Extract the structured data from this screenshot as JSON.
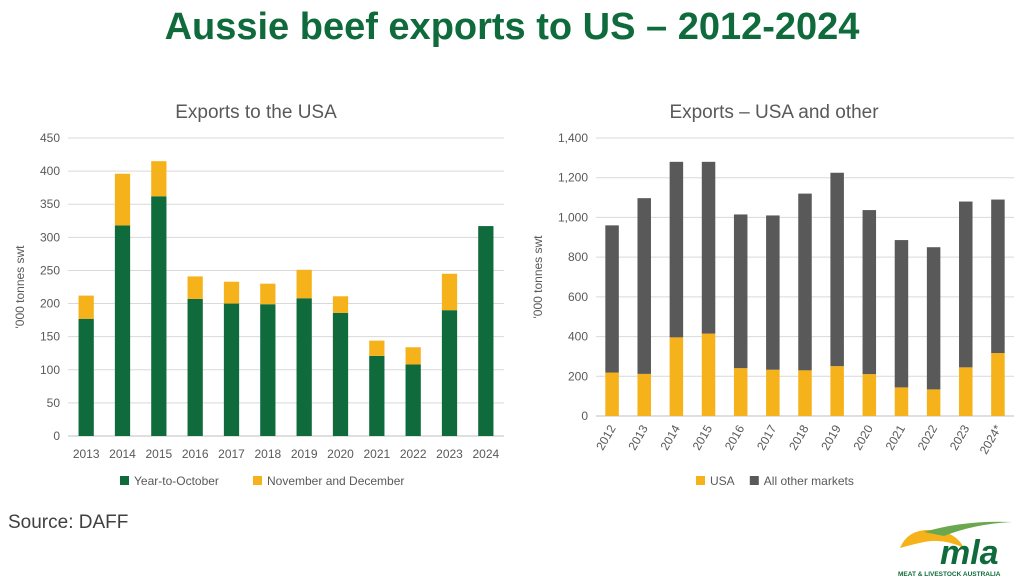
{
  "page": {
    "title": "Aussie beef exports to US – 2012-2024",
    "source": "Source: DAFF",
    "logo": {
      "wordmark": "mla",
      "tagline": "MEAT & LIVESTOCK AUSTRALIA"
    }
  },
  "chart_data": [
    {
      "type": "bar",
      "stacked": true,
      "title": "Exports to the USA",
      "ylabel": "'000 tonnes swt",
      "xlabel": "",
      "ylim": [
        0,
        450
      ],
      "yticks": [
        0,
        50,
        100,
        150,
        200,
        250,
        300,
        350,
        400,
        450
      ],
      "grid": true,
      "legend_position": "bottom",
      "categories": [
        "2013",
        "2014",
        "2015",
        "2016",
        "2017",
        "2018",
        "2019",
        "2020",
        "2021",
        "2022",
        "2023",
        "2024"
      ],
      "series": [
        {
          "name": "Year-to-October",
          "color": "#0f6b3c",
          "values": [
            177,
            318,
            362,
            207,
            200,
            199,
            208,
            186,
            121,
            108,
            190,
            317
          ]
        },
        {
          "name": "November and December",
          "color": "#f5b21b",
          "values": [
            35,
            78,
            53,
            34,
            33,
            31,
            43,
            25,
            23,
            26,
            55,
            0
          ]
        }
      ]
    },
    {
      "type": "bar",
      "stacked": true,
      "title": "Exports – USA and other",
      "ylabel": "'000 tonnes swt",
      "xlabel": "",
      "ylim": [
        0,
        1400
      ],
      "yticks": [
        0,
        200,
        400,
        600,
        800,
        1000,
        1200,
        1400
      ],
      "ytick_labels": [
        "0",
        "200",
        "400",
        "600",
        "800",
        "1,000",
        "1,200",
        "1,400"
      ],
      "grid": true,
      "legend_position": "bottom",
      "categories": [
        "2012",
        "2013",
        "2014",
        "2015",
        "2016",
        "2017",
        "2018",
        "2019",
        "2020",
        "2021",
        "2022",
        "2023",
        "2024*"
      ],
      "series": [
        {
          "name": "USA",
          "color": "#f5b21b",
          "values": [
            219,
            212,
            396,
            415,
            241,
            233,
            230,
            251,
            211,
            144,
            134,
            245,
            317
          ]
        },
        {
          "name": "All other markets",
          "color": "#595959",
          "values": [
            741,
            885,
            884,
            865,
            774,
            777,
            890,
            974,
            826,
            742,
            716,
            835,
            773
          ]
        }
      ]
    }
  ]
}
